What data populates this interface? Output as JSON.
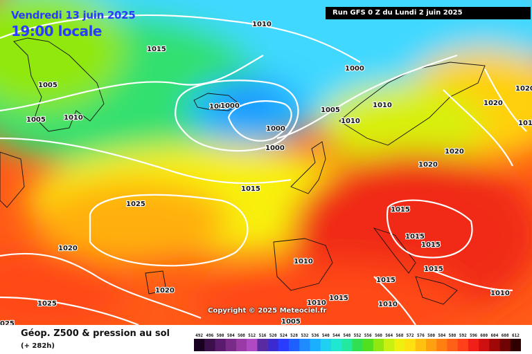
{
  "header": {
    "date": "Vendredi 13 juin 2025",
    "time": "19:00 locale",
    "run": "Run GFS 0 Z du Lundi 2 juin 2025"
  },
  "copyright": "Copyright © 2025 Meteociel.fr",
  "footer": {
    "title": "Géop. Z500 & pression au sol",
    "subtitle": "(+ 282h)"
  },
  "isobar_labels": [
    "1010",
    "1015",
    "1005",
    "1010",
    "1005",
    "1010",
    "1000",
    "1005",
    "1010",
    "1020",
    "1020",
    "1020",
    "1020",
    "1000",
    "1000",
    "1000",
    "1000",
    "1015",
    "1025",
    "1020",
    "1020",
    "1015",
    "1015",
    "1015",
    "1015",
    "1010",
    "1015",
    "1010",
    "1010",
    "1015",
    "1010",
    "1005",
    "1010",
    "1025",
    "025"
  ],
  "scale": {
    "ticks": [
      "492",
      "496",
      "500",
      "504",
      "508",
      "512",
      "516",
      "520",
      "524",
      "528",
      "532",
      "536",
      "540",
      "544",
      "548",
      "552",
      "556",
      "560",
      "564",
      "568",
      "572",
      "576",
      "580",
      "584",
      "588",
      "592",
      "596",
      "600",
      "604",
      "608",
      "612"
    ],
    "colors": [
      "#1a0020",
      "#3a0f4a",
      "#5a1a6e",
      "#7a2a88",
      "#9a3aa6",
      "#b04ac2",
      "#5a2aa0",
      "#3a2ad0",
      "#2a3cff",
      "#1e60ff",
      "#1e8cff",
      "#1ab0ff",
      "#20d0f0",
      "#20e8d0",
      "#22e8a0",
      "#30e050",
      "#50e020",
      "#90e810",
      "#c8f010",
      "#f0f010",
      "#ffe010",
      "#ffc010",
      "#ffa010",
      "#ff8010",
      "#ff6018",
      "#ff4018",
      "#f02018",
      "#d01010",
      "#a00808",
      "#700404",
      "#300000"
    ]
  }
}
